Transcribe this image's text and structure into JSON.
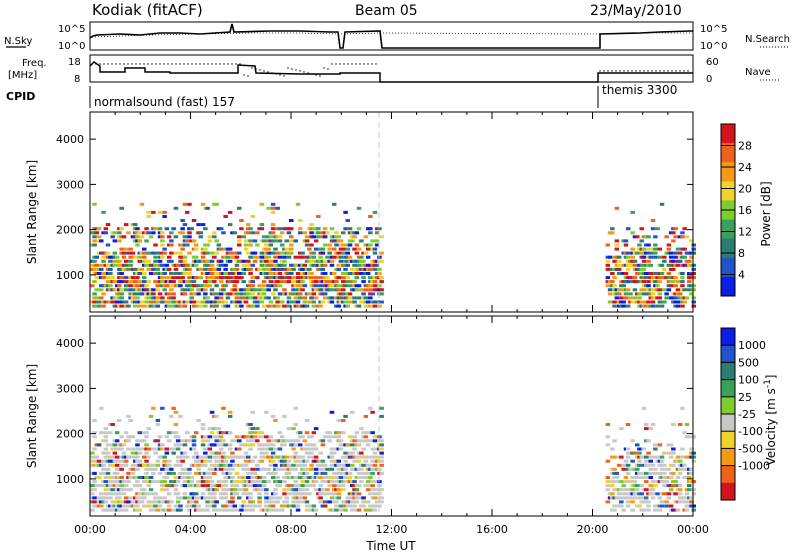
{
  "header": {
    "radar": "Kodiak (fitACF)",
    "beam": "Beam 05",
    "date": "23/May/2010"
  },
  "top_panel": {
    "left_label": "N.Sky",
    "right_label": "N.Search",
    "ticks_left": [
      "10^5",
      "10^0"
    ],
    "ticks_right": [
      "10^5",
      "10^0"
    ]
  },
  "freq_panel": {
    "left_label_1": "Freq.",
    "left_label_2": "[MHz]",
    "right_label": "Nave",
    "ticks_left": [
      "18",
      "8"
    ],
    "ticks_right": [
      "60",
      "0"
    ]
  },
  "cpid": {
    "label": "CPID",
    "modes": [
      {
        "name": "normalsound (fast) 157",
        "start_hour": 0.0,
        "end_hour": 11.55
      },
      {
        "name": "themis 3300",
        "start_hour": 20.5,
        "end_hour": 24.0
      }
    ]
  },
  "colors": {
    "power_scale": [
      "#0a1ee6",
      "#1f55c8",
      "#2e7d72",
      "#3aa05a",
      "#7ccd2f",
      "#f0d22a",
      "#f59a16",
      "#f0621a",
      "#d2141e"
    ],
    "velocity_scale": [
      "#0a1ee6",
      "#1f55c8",
      "#2e7d72",
      "#3aa05a",
      "#7ccd2f",
      "#c8c8c8",
      "#f0d22a",
      "#f59a16",
      "#f0621a",
      "#d2141e"
    ]
  },
  "chart_data": [
    {
      "type": "heatmap",
      "name": "power",
      "ylabel": "Slant Range [km]",
      "ylim": [
        180,
        4600
      ],
      "yticks": [
        1000,
        2000,
        3000,
        4000
      ],
      "xlim": [
        0,
        24
      ],
      "colorbar": {
        "label": "Power [dB]",
        "range": [
          0,
          32
        ],
        "ticks": [
          "4",
          "8",
          "12",
          "16",
          "20",
          "24",
          "28"
        ]
      },
      "data_gaps": [
        [
          11.55,
          20.5
        ]
      ]
    },
    {
      "type": "heatmap",
      "name": "velocity",
      "ylabel": "Slant Range [km]",
      "ylim": [
        180,
        4600
      ],
      "yticks": [
        1000,
        2000,
        3000,
        4000
      ],
      "xlim": [
        0,
        24
      ],
      "xlabel": "Time UT",
      "xticks": [
        "00:00",
        "04:00",
        "08:00",
        "12:00",
        "16:00",
        "20:00",
        "00:00"
      ],
      "colorbar": {
        "label": "Velocity [m s^-1]",
        "ticks": [
          "1000",
          "500",
          "100",
          "25",
          "-25",
          "-100",
          "-500",
          "-1000"
        ]
      },
      "data_gaps": [
        [
          11.55,
          20.5
        ]
      ]
    }
  ]
}
